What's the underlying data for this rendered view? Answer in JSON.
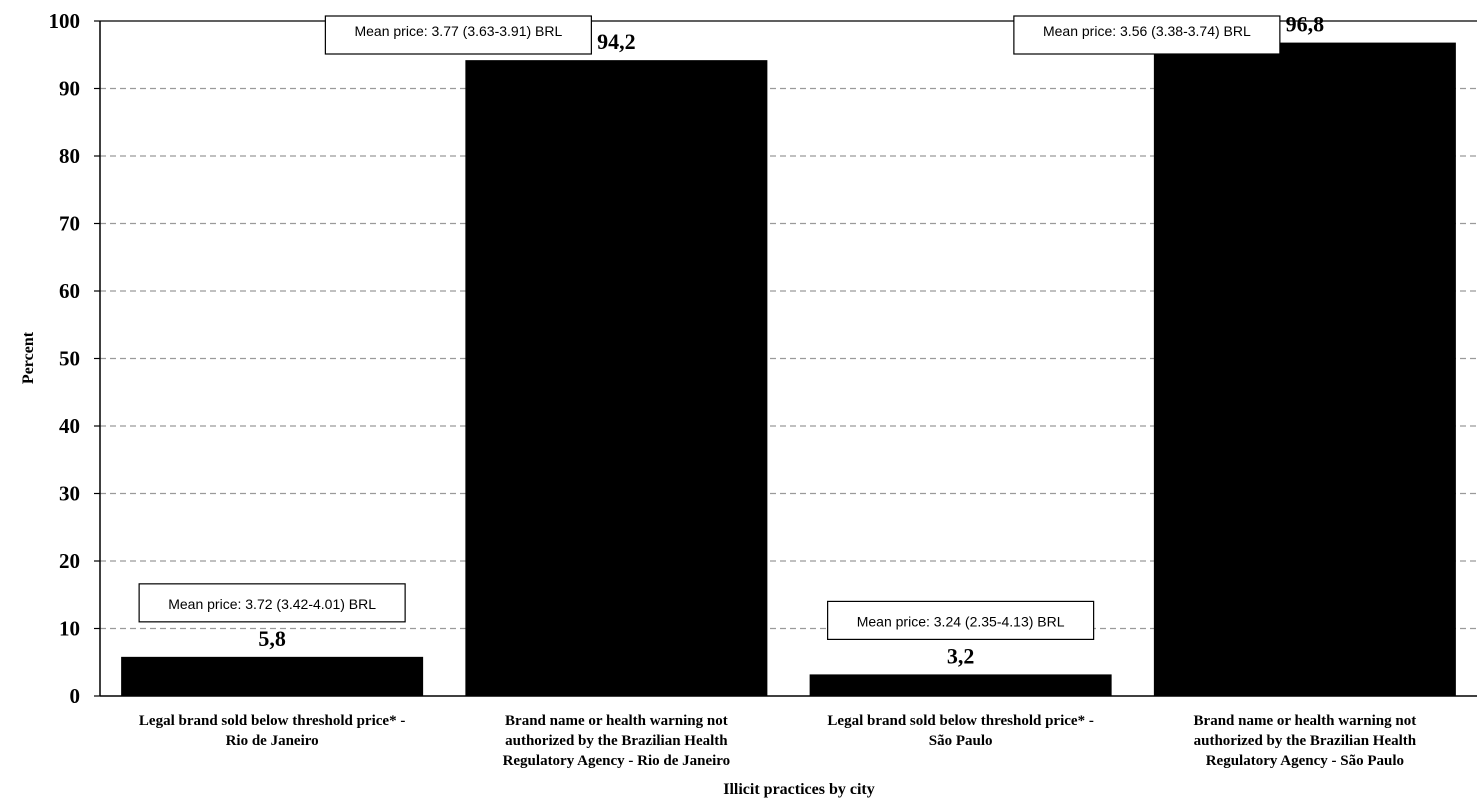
{
  "chart_data": {
    "type": "bar",
    "title": "",
    "xlabel": "Illicit practices by  city",
    "ylabel": "Percent",
    "ylim": [
      0,
      100
    ],
    "yticks": [
      "0",
      "10",
      "20",
      "30",
      "40",
      "50",
      "60",
      "70",
      "80",
      "90",
      "100"
    ],
    "grid": true,
    "legend": "none",
    "bar_color": "#000000",
    "categories": [
      [
        "Legal brand sold below threshold price*  -",
        "Rio de Janeiro"
      ],
      [
        "Brand name or health warning not",
        "authorized by the Brazilian Health",
        "Regulatory Agency - Rio de Janeiro"
      ],
      [
        "Legal brand sold below threshold price*  -",
        "São Paulo"
      ],
      [
        "Brand name or health warning not",
        "authorized by the Brazilian Health",
        "Regulatory Agency - São Paulo"
      ]
    ],
    "values": [
      5.8,
      94.2,
      3.2,
      96.8
    ],
    "value_labels": [
      "5,8",
      "94,2",
      "3,2",
      "96,8"
    ],
    "annotations": [
      "Mean price: 3.72 (3.42-4.01) BRL",
      "Mean price: 3.77 (3.63-3.91) BRL",
      "Mean price: 3.24 (2.35-4.13) BRL",
      "Mean price: 3.56 (3.38-3.74) BRL"
    ]
  }
}
